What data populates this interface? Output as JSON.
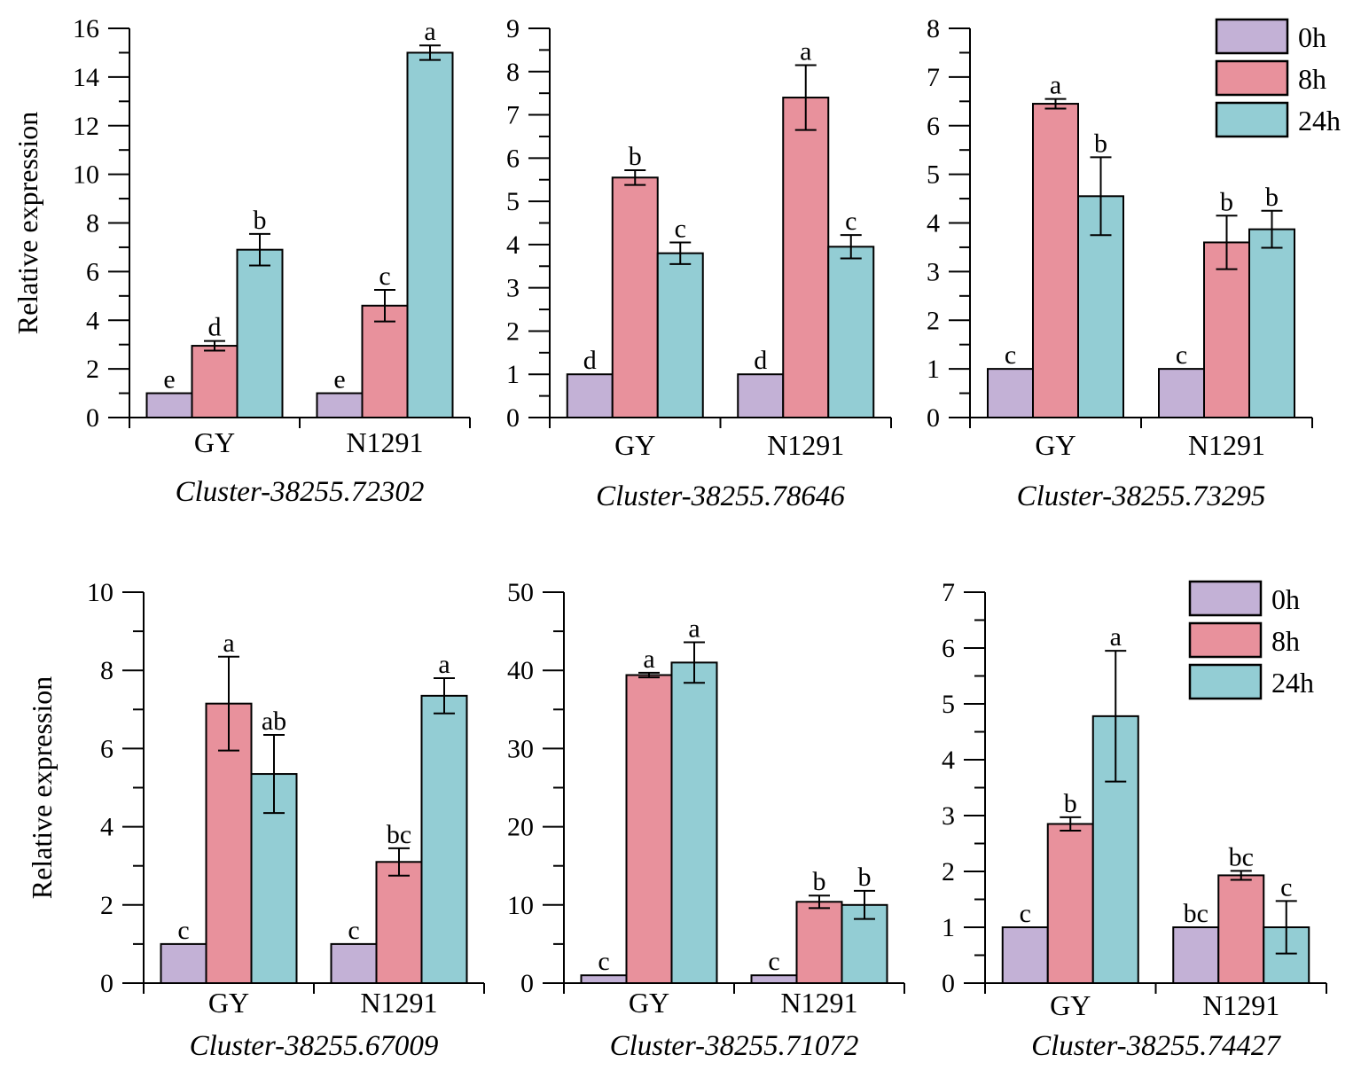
{
  "colors": {
    "0h": "#c3b1d6",
    "8h": "#e8919c",
    "24h": "#93cdd4",
    "axis": "#000000"
  },
  "legend": [
    "0h",
    "8h",
    "24h"
  ],
  "chart_data": [
    {
      "type": "bar",
      "title": "Cluster-38255.72302",
      "ylabel": "Relative expression",
      "ylim": [
        0,
        16
      ],
      "ymajor": 2,
      "categories": [
        "GY",
        "N1291"
      ],
      "series": [
        {
          "name": "0h",
          "values": [
            1,
            1
          ],
          "errors": [
            0,
            0
          ],
          "letters": [
            "e",
            "e"
          ]
        },
        {
          "name": "8h",
          "values": [
            2.95,
            4.6
          ],
          "errors": [
            0.2,
            0.65
          ],
          "letters": [
            "d",
            "c"
          ]
        },
        {
          "name": "24h",
          "values": [
            6.9,
            15.0
          ],
          "errors": [
            0.65,
            0.3
          ],
          "letters": [
            "b",
            "a"
          ]
        }
      ]
    },
    {
      "type": "bar",
      "title": "Cluster-38255.78646",
      "ylabel": "",
      "ylim": [
        0,
        9
      ],
      "ymajor": 1,
      "categories": [
        "GY",
        "N1291"
      ],
      "series": [
        {
          "name": "0h",
          "values": [
            1,
            1
          ],
          "errors": [
            0,
            0
          ],
          "letters": [
            "d",
            "d"
          ]
        },
        {
          "name": "8h",
          "values": [
            5.55,
            7.4
          ],
          "errors": [
            0.17,
            0.75
          ],
          "letters": [
            "b",
            "a"
          ]
        },
        {
          "name": "24h",
          "values": [
            3.8,
            3.95
          ],
          "errors": [
            0.25,
            0.27
          ],
          "letters": [
            "c",
            "c"
          ]
        }
      ]
    },
    {
      "type": "bar",
      "title": "Cluster-38255.73295",
      "ylabel": "",
      "ylim": [
        0,
        8
      ],
      "ymajor": 1,
      "categories": [
        "GY",
        "N1291"
      ],
      "legend": "top-right",
      "series": [
        {
          "name": "0h",
          "values": [
            1,
            1
          ],
          "errors": [
            0,
            0
          ],
          "letters": [
            "c",
            "c"
          ]
        },
        {
          "name": "8h",
          "values": [
            6.45,
            3.6
          ],
          "errors": [
            0.1,
            0.55
          ],
          "letters": [
            "a",
            "b"
          ]
        },
        {
          "name": "24h",
          "values": [
            4.55,
            3.87
          ],
          "errors": [
            0.8,
            0.38
          ],
          "letters": [
            "b",
            "b"
          ]
        }
      ]
    },
    {
      "type": "bar",
      "title": "Cluster-38255.67009",
      "ylabel": "Relative expression",
      "ylim": [
        0,
        10
      ],
      "ymajor": 2,
      "categories": [
        "GY",
        "N1291"
      ],
      "series": [
        {
          "name": "0h",
          "values": [
            1,
            1
          ],
          "errors": [
            0,
            0
          ],
          "letters": [
            "c",
            "c"
          ]
        },
        {
          "name": "8h",
          "values": [
            7.15,
            3.1
          ],
          "errors": [
            1.2,
            0.35
          ],
          "letters": [
            "a",
            "bc"
          ]
        },
        {
          "name": "24h",
          "values": [
            5.35,
            7.35
          ],
          "errors": [
            1.0,
            0.45
          ],
          "letters": [
            "ab",
            "a"
          ]
        }
      ]
    },
    {
      "type": "bar",
      "title": "Cluster-38255.71072",
      "ylabel": "",
      "ylim": [
        0,
        50
      ],
      "ymajor": 10,
      "categories": [
        "GY",
        "N1291"
      ],
      "series": [
        {
          "name": "0h",
          "values": [
            1,
            1
          ],
          "errors": [
            0,
            0
          ],
          "letters": [
            "c",
            "c"
          ]
        },
        {
          "name": "8h",
          "values": [
            39.4,
            10.4
          ],
          "errors": [
            0.3,
            0.8
          ],
          "letters": [
            "a",
            "b"
          ]
        },
        {
          "name": "24h",
          "values": [
            41.0,
            10.0
          ],
          "errors": [
            2.6,
            1.8
          ],
          "letters": [
            "a",
            "b"
          ]
        }
      ]
    },
    {
      "type": "bar",
      "title": "Cluster-38255.74427",
      "ylabel": "",
      "ylim": [
        0,
        7
      ],
      "ymajor": 1,
      "categories": [
        "GY",
        "N1291"
      ],
      "legend": "top-right",
      "series": [
        {
          "name": "0h",
          "values": [
            1,
            1
          ],
          "errors": [
            0,
            0
          ],
          "letters": [
            "c",
            "bc"
          ]
        },
        {
          "name": "8h",
          "values": [
            2.85,
            1.93
          ],
          "errors": [
            0.12,
            0.08
          ],
          "letters": [
            "b",
            "bc"
          ]
        },
        {
          "name": "24h",
          "values": [
            4.78,
            1.0
          ],
          "errors": [
            1.17,
            0.47
          ],
          "letters": [
            "a",
            "c"
          ]
        }
      ]
    }
  ]
}
